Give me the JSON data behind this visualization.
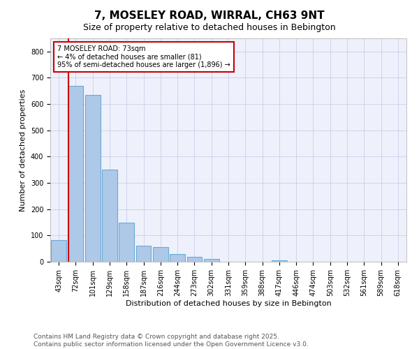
{
  "title": "7, MOSELEY ROAD, WIRRAL, CH63 9NT",
  "subtitle": "Size of property relative to detached houses in Bebington",
  "xlabel": "Distribution of detached houses by size in Bebington",
  "ylabel": "Number of detached properties",
  "bar_labels": [
    "43sqm",
    "72sqm",
    "101sqm",
    "129sqm",
    "158sqm",
    "187sqm",
    "216sqm",
    "244sqm",
    "273sqm",
    "302sqm",
    "331sqm",
    "359sqm",
    "388sqm",
    "417sqm",
    "446sqm",
    "474sqm",
    "503sqm",
    "532sqm",
    "561sqm",
    "589sqm",
    "618sqm"
  ],
  "bar_values": [
    83,
    670,
    635,
    350,
    148,
    60,
    55,
    28,
    18,
    10,
    0,
    0,
    0,
    5,
    0,
    0,
    0,
    0,
    0,
    0,
    0
  ],
  "bar_color": "#aec8e8",
  "bar_edge_color": "#6aaad4",
  "red_line_color": "#cc0000",
  "annotation_text": "7 MOSELEY ROAD: 73sqm\n← 4% of detached houses are smaller (81)\n95% of semi-detached houses are larger (1,896) →",
  "annotation_box_color": "#ffffff",
  "annotation_box_edge_color": "#cc0000",
  "ylim": [
    0,
    850
  ],
  "yticks": [
    0,
    100,
    200,
    300,
    400,
    500,
    600,
    700,
    800
  ],
  "bg_color": "#eef1fb",
  "grid_color": "#c8cfe8",
  "footer_line1": "Contains HM Land Registry data © Crown copyright and database right 2025.",
  "footer_line2": "Contains public sector information licensed under the Open Government Licence v3.0.",
  "title_fontsize": 11,
  "subtitle_fontsize": 9,
  "axis_label_fontsize": 8,
  "tick_fontsize": 7,
  "footer_fontsize": 6.5
}
